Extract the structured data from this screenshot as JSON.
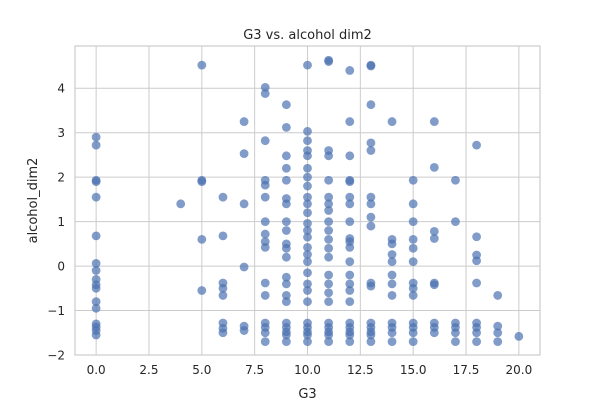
{
  "chart_data": {
    "type": "scatter",
    "title": "G3 vs. alcohol dim2",
    "xlabel": "G3",
    "ylabel": "alcohol_dim2",
    "xlim": [
      -1.0,
      21.0
    ],
    "ylim": [
      -2.0,
      4.95
    ],
    "xticks": [
      0.0,
      2.5,
      5.0,
      7.5,
      10.0,
      12.5,
      15.0,
      17.5,
      20.0
    ],
    "xtick_labels": [
      "0.0",
      "2.5",
      "5.0",
      "7.5",
      "10.0",
      "12.5",
      "15.0",
      "17.5",
      "20.0"
    ],
    "yticks": [
      -2,
      -1,
      0,
      1,
      2,
      3,
      4
    ],
    "ytick_labels": [
      "−2",
      "−1",
      "0",
      "1",
      "2",
      "3",
      "4"
    ],
    "grid": true,
    "marker_color": "#4c72b0",
    "points": [
      [
        0,
        2.9
      ],
      [
        0,
        2.72
      ],
      [
        0,
        1.93
      ],
      [
        0,
        1.9
      ],
      [
        0,
        1.55
      ],
      [
        0,
        0.68
      ],
      [
        0,
        0.06
      ],
      [
        0,
        -0.1
      ],
      [
        0,
        -0.3
      ],
      [
        0,
        -0.42
      ],
      [
        0,
        -0.5
      ],
      [
        0,
        -0.8
      ],
      [
        0,
        -0.95
      ],
      [
        0,
        -1.3
      ],
      [
        0,
        -1.37
      ],
      [
        0,
        -1.45
      ],
      [
        0,
        -1.55
      ],
      [
        4,
        1.4
      ],
      [
        5,
        4.52
      ],
      [
        5,
        1.93
      ],
      [
        5,
        1.9
      ],
      [
        5,
        0.6
      ],
      [
        5,
        -0.55
      ],
      [
        6,
        1.55
      ],
      [
        6,
        0.68
      ],
      [
        6,
        -0.38
      ],
      [
        6,
        -0.5
      ],
      [
        6,
        -0.66
      ],
      [
        6,
        -1.28
      ],
      [
        6,
        -1.4
      ],
      [
        6,
        -1.5
      ],
      [
        7,
        3.25
      ],
      [
        7,
        2.53
      ],
      [
        7,
        1.4
      ],
      [
        7,
        -0.02
      ],
      [
        7,
        -1.35
      ],
      [
        7,
        -1.45
      ],
      [
        8,
        4.02
      ],
      [
        8,
        3.88
      ],
      [
        8,
        2.82
      ],
      [
        8,
        1.93
      ],
      [
        8,
        1.82
      ],
      [
        8,
        1.55
      ],
      [
        8,
        1.0
      ],
      [
        8,
        0.72
      ],
      [
        8,
        0.55
      ],
      [
        8,
        0.42
      ],
      [
        8,
        -0.38
      ],
      [
        8,
        -0.66
      ],
      [
        8,
        -1.28
      ],
      [
        8,
        -1.38
      ],
      [
        8,
        -1.5
      ],
      [
        8,
        -1.7
      ],
      [
        9,
        3.63
      ],
      [
        9,
        3.12
      ],
      [
        9,
        2.48
      ],
      [
        9,
        2.2
      ],
      [
        9,
        1.93
      ],
      [
        9,
        1.52
      ],
      [
        9,
        1.4
      ],
      [
        9,
        1.0
      ],
      [
        9,
        0.8
      ],
      [
        9,
        0.5
      ],
      [
        9,
        0.4
      ],
      [
        9,
        0.2
      ],
      [
        9,
        -0.25
      ],
      [
        9,
        -0.4
      ],
      [
        9,
        -0.66
      ],
      [
        9,
        -0.8
      ],
      [
        9,
        -1.28
      ],
      [
        9,
        -1.38
      ],
      [
        9,
        -1.48
      ],
      [
        9,
        -1.55
      ],
      [
        9,
        -1.7
      ],
      [
        10,
        4.52
      ],
      [
        10,
        3.03
      ],
      [
        10,
        2.82
      ],
      [
        10,
        2.6
      ],
      [
        10,
        2.48
      ],
      [
        10,
        2.2
      ],
      [
        10,
        2.0
      ],
      [
        10,
        1.8
      ],
      [
        10,
        1.55
      ],
      [
        10,
        1.4
      ],
      [
        10,
        1.2
      ],
      [
        10,
        0.96
      ],
      [
        10,
        0.8
      ],
      [
        10,
        0.65
      ],
      [
        10,
        0.42
      ],
      [
        10,
        0.26
      ],
      [
        10,
        0.1
      ],
      [
        10,
        -0.15
      ],
      [
        10,
        -0.4
      ],
      [
        10,
        -0.55
      ],
      [
        10,
        -0.8
      ],
      [
        10,
        -1.28
      ],
      [
        10,
        -1.38
      ],
      [
        10,
        -1.48
      ],
      [
        10,
        -1.55
      ],
      [
        10,
        -1.7
      ],
      [
        11,
        4.63
      ],
      [
        11,
        4.6
      ],
      [
        11,
        2.6
      ],
      [
        11,
        2.48
      ],
      [
        11,
        1.93
      ],
      [
        11,
        1.55
      ],
      [
        11,
        1.4
      ],
      [
        11,
        1.25
      ],
      [
        11,
        1.0
      ],
      [
        11,
        0.8
      ],
      [
        11,
        0.6
      ],
      [
        11,
        0.4
      ],
      [
        11,
        0.2
      ],
      [
        11,
        -0.2
      ],
      [
        11,
        -0.4
      ],
      [
        11,
        -0.6
      ],
      [
        11,
        -0.8
      ],
      [
        11,
        -1.28
      ],
      [
        11,
        -1.38
      ],
      [
        11,
        -1.48
      ],
      [
        11,
        -1.55
      ],
      [
        11,
        -1.7
      ],
      [
        12,
        4.4
      ],
      [
        12,
        3.25
      ],
      [
        12,
        2.48
      ],
      [
        12,
        1.93
      ],
      [
        12,
        1.9
      ],
      [
        12,
        1.55
      ],
      [
        12,
        1.4
      ],
      [
        12,
        1.0
      ],
      [
        12,
        0.62
      ],
      [
        12,
        0.55
      ],
      [
        12,
        0.42
      ],
      [
        12,
        0.1
      ],
      [
        12,
        -0.2
      ],
      [
        12,
        -0.4
      ],
      [
        12,
        -0.55
      ],
      [
        12,
        -0.8
      ],
      [
        12,
        -1.28
      ],
      [
        12,
        -1.38
      ],
      [
        12,
        -1.48
      ],
      [
        12,
        -1.55
      ],
      [
        12,
        -1.7
      ],
      [
        13,
        4.52
      ],
      [
        13,
        4.5
      ],
      [
        13,
        3.63
      ],
      [
        13,
        2.77
      ],
      [
        13,
        2.6
      ],
      [
        13,
        1.55
      ],
      [
        13,
        1.4
      ],
      [
        13,
        1.1
      ],
      [
        13,
        0.9
      ],
      [
        13,
        -0.38
      ],
      [
        13,
        -0.45
      ],
      [
        13,
        -1.28
      ],
      [
        13,
        -1.38
      ],
      [
        13,
        -1.48
      ],
      [
        13,
        -1.55
      ],
      [
        13,
        -1.7
      ],
      [
        14,
        3.25
      ],
      [
        14,
        0.6
      ],
      [
        14,
        0.5
      ],
      [
        14,
        0.26
      ],
      [
        14,
        0.1
      ],
      [
        14,
        -0.2
      ],
      [
        14,
        -0.4
      ],
      [
        14,
        -0.66
      ],
      [
        14,
        -1.28
      ],
      [
        14,
        -1.38
      ],
      [
        14,
        -1.5
      ],
      [
        14,
        -1.7
      ],
      [
        15,
        1.93
      ],
      [
        15,
        1.4
      ],
      [
        15,
        1.0
      ],
      [
        15,
        0.6
      ],
      [
        15,
        0.4
      ],
      [
        15,
        0.1
      ],
      [
        15,
        -0.38
      ],
      [
        15,
        -0.5
      ],
      [
        15,
        -0.66
      ],
      [
        15,
        -1.28
      ],
      [
        15,
        -1.38
      ],
      [
        15,
        -1.5
      ],
      [
        15,
        -1.7
      ],
      [
        16,
        3.25
      ],
      [
        16,
        2.22
      ],
      [
        16,
        0.78
      ],
      [
        16,
        0.62
      ],
      [
        16,
        -0.38
      ],
      [
        16,
        -0.42
      ],
      [
        16,
        -1.28
      ],
      [
        16,
        -1.38
      ],
      [
        16,
        -1.5
      ],
      [
        17,
        1.93
      ],
      [
        17,
        1.0
      ],
      [
        17,
        -1.28
      ],
      [
        17,
        -1.38
      ],
      [
        17,
        -1.5
      ],
      [
        17,
        -1.7
      ],
      [
        18,
        2.72
      ],
      [
        18,
        0.66
      ],
      [
        18,
        0.25
      ],
      [
        18,
        0.12
      ],
      [
        18,
        -0.38
      ],
      [
        18,
        -1.28
      ],
      [
        18,
        -1.38
      ],
      [
        18,
        -1.5
      ],
      [
        18,
        -1.7
      ],
      [
        19,
        -0.66
      ],
      [
        19,
        -1.35
      ],
      [
        19,
        -1.5
      ],
      [
        19,
        -1.7
      ],
      [
        20,
        -1.58
      ]
    ]
  }
}
